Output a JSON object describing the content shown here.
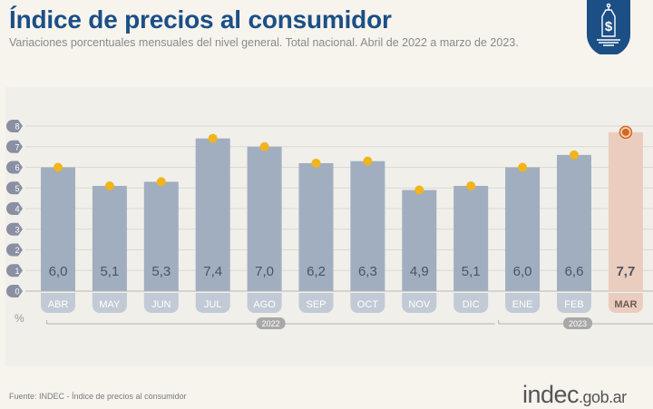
{
  "header": {
    "title": "Índice de precios al consumidor",
    "subtitle": "Variaciones porcentuales mensuales del nivel general. Total nacional. Abril de 2022 a marzo de 2023."
  },
  "badge": {
    "icon": "price-tag-dollar-icon",
    "color": "#1b4f86"
  },
  "footer": {
    "source": "Fuente: INDEC - Índice de precios al consumidor",
    "logo_main": "indec",
    "logo_domain": ".gob.ar"
  },
  "colors": {
    "bar": "#a0aec0",
    "bar_highlight": "#ebcdbf",
    "dot": "#f0b41c",
    "dot_highlight": "#d2691e",
    "axis_bubble": "#8a8fa3",
    "month_pill": "#c2cad6",
    "month_pill_highlight": "#ebcdbf",
    "year_pill": "#a8a8a8",
    "value_text": "#4b5563",
    "grid": "#dcd9d3"
  },
  "chart_data": {
    "type": "bar",
    "title": "Índice de precios al consumidor",
    "subtitle": "Variaciones porcentuales mensuales del nivel general. Total nacional. Abril de 2022 a marzo de 2023.",
    "xlabel": "",
    "ylabel": "%",
    "ylim": [
      0,
      8
    ],
    "yticks": [
      0,
      1,
      2,
      3,
      4,
      5,
      6,
      7,
      8
    ],
    "grid": true,
    "categories": [
      "ABR",
      "MAY",
      "JUN",
      "JUL",
      "AGO",
      "SEP",
      "OCT",
      "NOV",
      "DIC",
      "ENE",
      "FEB",
      "MAR"
    ],
    "values": [
      6.0,
      5.1,
      5.3,
      7.4,
      7.0,
      6.2,
      6.3,
      4.9,
      5.1,
      6.0,
      6.6,
      7.7
    ],
    "value_labels": [
      "6,0",
      "5,1",
      "5,3",
      "7,4",
      "7,0",
      "6,2",
      "6,3",
      "4,9",
      "5,1",
      "6,0",
      "6,6",
      "7,7"
    ],
    "highlight_index": 11,
    "year_groups": [
      {
        "label": "2022",
        "start": 0,
        "end": 8
      },
      {
        "label": "2023",
        "start": 9,
        "end": 11
      }
    ]
  }
}
